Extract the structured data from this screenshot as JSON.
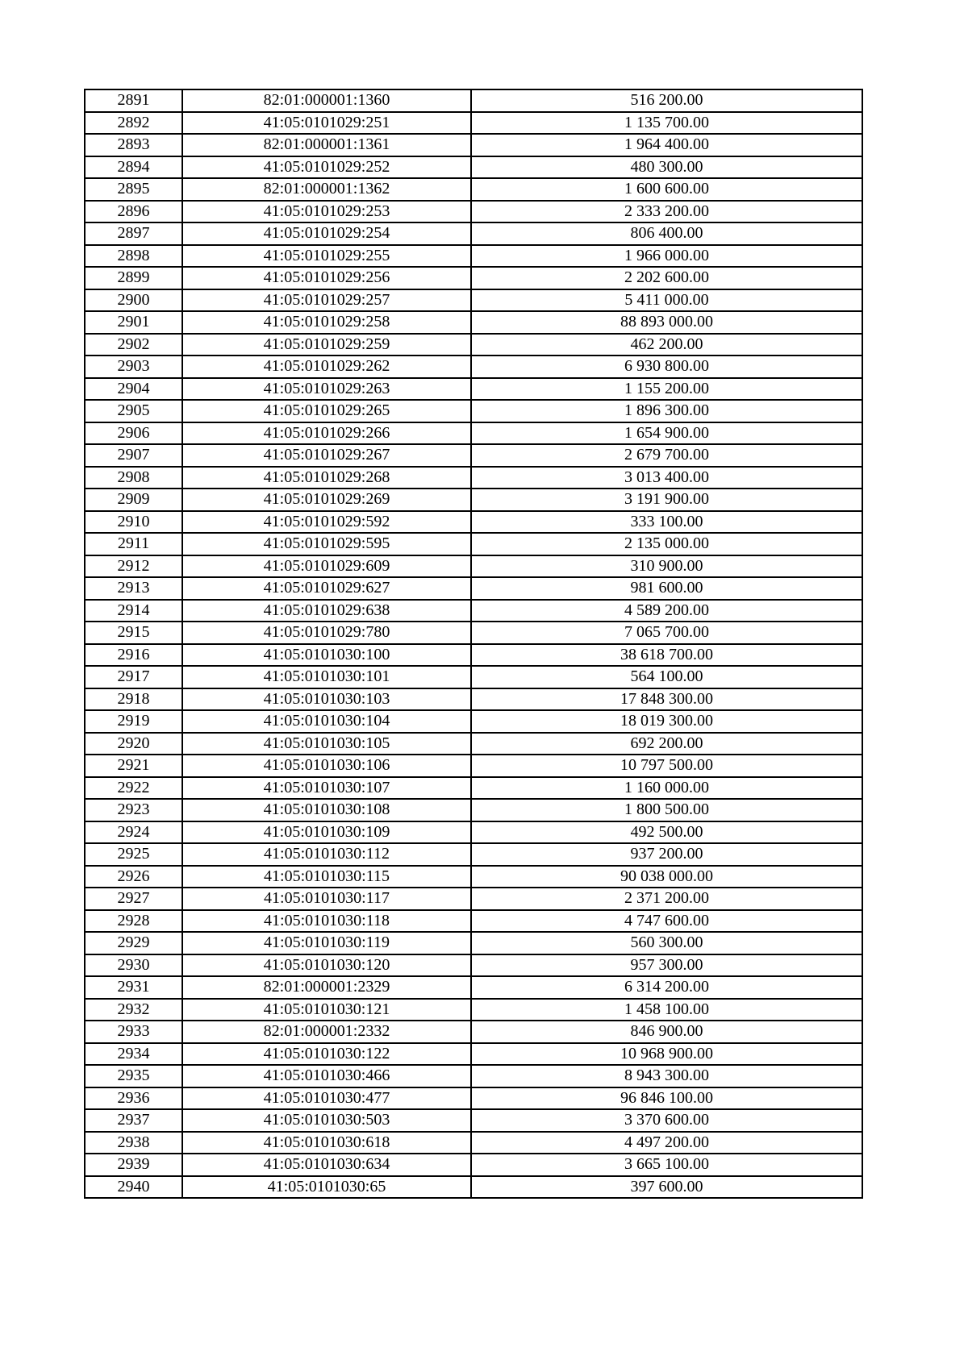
{
  "table": {
    "rows": [
      [
        "2891",
        "82:01:000001:1360",
        "516 200.00"
      ],
      [
        "2892",
        "41:05:0101029:251",
        "1 135 700.00"
      ],
      [
        "2893",
        "82:01:000001:1361",
        "1 964 400.00"
      ],
      [
        "2894",
        "41:05:0101029:252",
        "480 300.00"
      ],
      [
        "2895",
        "82:01:000001:1362",
        "1 600 600.00"
      ],
      [
        "2896",
        "41:05:0101029:253",
        "2 333 200.00"
      ],
      [
        "2897",
        "41:05:0101029:254",
        "806 400.00"
      ],
      [
        "2898",
        "41:05:0101029:255",
        "1 966 000.00"
      ],
      [
        "2899",
        "41:05:0101029:256",
        "2 202 600.00"
      ],
      [
        "2900",
        "41:05:0101029:257",
        "5 411 000.00"
      ],
      [
        "2901",
        "41:05:0101029:258",
        "88 893 000.00"
      ],
      [
        "2902",
        "41:05:0101029:259",
        "462 200.00"
      ],
      [
        "2903",
        "41:05:0101029:262",
        "6 930 800.00"
      ],
      [
        "2904",
        "41:05:0101029:263",
        "1 155 200.00"
      ],
      [
        "2905",
        "41:05:0101029:265",
        "1 896 300.00"
      ],
      [
        "2906",
        "41:05:0101029:266",
        "1 654 900.00"
      ],
      [
        "2907",
        "41:05:0101029:267",
        "2 679 700.00"
      ],
      [
        "2908",
        "41:05:0101029:268",
        "3 013 400.00"
      ],
      [
        "2909",
        "41:05:0101029:269",
        "3 191 900.00"
      ],
      [
        "2910",
        "41:05:0101029:592",
        "333 100.00"
      ],
      [
        "2911",
        "41:05:0101029:595",
        "2 135 000.00"
      ],
      [
        "2912",
        "41:05:0101029:609",
        "310 900.00"
      ],
      [
        "2913",
        "41:05:0101029:627",
        "981 600.00"
      ],
      [
        "2914",
        "41:05:0101029:638",
        "4 589 200.00"
      ],
      [
        "2915",
        "41:05:0101029:780",
        "7 065 700.00"
      ],
      [
        "2916",
        "41:05:0101030:100",
        "38 618 700.00"
      ],
      [
        "2917",
        "41:05:0101030:101",
        "564 100.00"
      ],
      [
        "2918",
        "41:05:0101030:103",
        "17 848 300.00"
      ],
      [
        "2919",
        "41:05:0101030:104",
        "18 019 300.00"
      ],
      [
        "2920",
        "41:05:0101030:105",
        "692 200.00"
      ],
      [
        "2921",
        "41:05:0101030:106",
        "10 797 500.00"
      ],
      [
        "2922",
        "41:05:0101030:107",
        "1 160 000.00"
      ],
      [
        "2923",
        "41:05:0101030:108",
        "1 800 500.00"
      ],
      [
        "2924",
        "41:05:0101030:109",
        "492 500.00"
      ],
      [
        "2925",
        "41:05:0101030:112",
        "937 200.00"
      ],
      [
        "2926",
        "41:05:0101030:115",
        "90 038 000.00"
      ],
      [
        "2927",
        "41:05:0101030:117",
        "2 371 200.00"
      ],
      [
        "2928",
        "41:05:0101030:118",
        "4 747 600.00"
      ],
      [
        "2929",
        "41:05:0101030:119",
        "560 300.00"
      ],
      [
        "2930",
        "41:05:0101030:120",
        "957 300.00"
      ],
      [
        "2931",
        "82:01:000001:2329",
        "6 314 200.00"
      ],
      [
        "2932",
        "41:05:0101030:121",
        "1 458 100.00"
      ],
      [
        "2933",
        "82:01:000001:2332",
        "846 900.00"
      ],
      [
        "2934",
        "41:05:0101030:122",
        "10 968 900.00"
      ],
      [
        "2935",
        "41:05:0101030:466",
        "8 943 300.00"
      ],
      [
        "2936",
        "41:05:0101030:477",
        "96 846 100.00"
      ],
      [
        "2937",
        "41:05:0101030:503",
        "3 370 600.00"
      ],
      [
        "2938",
        "41:05:0101030:618",
        "4 497 200.00"
      ],
      [
        "2939",
        "41:05:0101030:634",
        "3 665 100.00"
      ],
      [
        "2940",
        "41:05:0101030:65",
        "397 600.00"
      ]
    ]
  }
}
